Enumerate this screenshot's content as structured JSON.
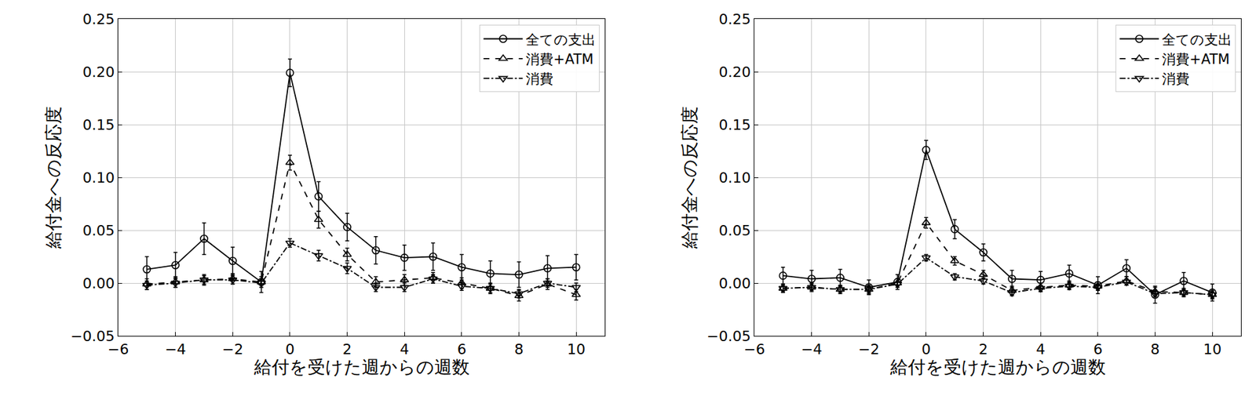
{
  "chart_data": [
    {
      "type": "line",
      "xlabel": "給付を受けた週からの週数",
      "ylabel": "給付金への反応度",
      "x": [
        -5,
        -4,
        -3,
        -2,
        -1,
        0,
        1,
        2,
        3,
        4,
        5,
        6,
        7,
        8,
        9,
        10
      ],
      "xlim": [
        -6,
        11
      ],
      "xticks": [
        {
          "value": -6,
          "label": "−6"
        },
        {
          "value": -4,
          "label": "−4"
        },
        {
          "value": -2,
          "label": "−2"
        },
        0,
        2,
        4,
        6,
        8,
        10
      ],
      "ylim": [
        -0.05,
        0.25
      ],
      "yticks": [
        {
          "value": -0.05,
          "label": "−0.05"
        },
        {
          "value": 0,
          "label": "0.00"
        },
        0.05,
        {
          "value": 0.1,
          "label": "0.10"
        },
        0.15,
        {
          "value": 0.2,
          "label": "0.20"
        },
        0.25
      ],
      "grid": true,
      "legend": "upper right",
      "series": [
        {
          "name": "全ての支出",
          "color": "#000000",
          "marker": "circle",
          "line_style": "solid",
          "values": [
            0.013,
            0.017,
            0.042,
            0.021,
            0.001,
            0.199,
            0.082,
            0.053,
            0.031,
            0.024,
            0.025,
            0.015,
            0.009,
            0.008,
            0.014,
            0.015
          ],
          "errors": [
            0.012,
            0.012,
            0.015,
            0.013,
            0.01,
            0.013,
            0.014,
            0.013,
            0.013,
            0.012,
            0.013,
            0.012,
            0.012,
            0.012,
            0.012,
            0.012
          ]
        },
        {
          "name": "消費+ATM",
          "color": "#000000",
          "marker": "triangle-up",
          "line_style": "dashed",
          "values": [
            -0.001,
            0.001,
            0.003,
            0.004,
            0.001,
            0.114,
            0.06,
            0.027,
            0.001,
            0.003,
            0.005,
            0.0,
            -0.005,
            -0.012,
            -0.001,
            -0.011
          ],
          "errors": [
            0.005,
            0.005,
            0.005,
            0.005,
            0.005,
            0.007,
            0.008,
            0.006,
            0.005,
            0.005,
            0.005,
            0.005,
            0.005,
            0.005,
            0.005,
            0.005
          ]
        },
        {
          "name": "消費",
          "color": "#000000",
          "marker": "triangle-down",
          "line_style": "dashdot",
          "values": [
            -0.002,
            0.0,
            0.003,
            0.003,
            0.0,
            0.038,
            0.026,
            0.014,
            -0.004,
            -0.004,
            0.004,
            -0.003,
            -0.005,
            -0.01,
            0.0,
            -0.004
          ],
          "errors": [
            0.004,
            0.004,
            0.004,
            0.004,
            0.004,
            0.004,
            0.005,
            0.005,
            0.004,
            0.004,
            0.004,
            0.004,
            0.004,
            0.004,
            0.004,
            0.004
          ]
        }
      ]
    },
    {
      "type": "line",
      "xlabel": "給付を受けた週からの週数",
      "ylabel": "給付金への反応度",
      "x": [
        -5,
        -4,
        -3,
        -2,
        -1,
        0,
        1,
        2,
        3,
        4,
        5,
        6,
        7,
        8,
        9,
        10
      ],
      "xlim": [
        -6,
        11
      ],
      "xticks": [
        {
          "value": -6,
          "label": "−6"
        },
        {
          "value": -4,
          "label": "−4"
        },
        {
          "value": -2,
          "label": "−2"
        },
        0,
        2,
        4,
        6,
        8,
        10
      ],
      "ylim": [
        -0.05,
        0.25
      ],
      "yticks": [
        {
          "value": -0.05,
          "label": "−0.05"
        },
        {
          "value": 0,
          "label": "0.00"
        },
        0.05,
        {
          "value": 0.1,
          "label": "0.10"
        },
        0.15,
        {
          "value": 0.2,
          "label": "0.20"
        },
        0.25
      ],
      "grid": true,
      "legend": "upper right",
      "series": [
        {
          "name": "全ての支出",
          "color": "#000000",
          "marker": "circle",
          "line_style": "solid",
          "values": [
            0.007,
            0.004,
            0.005,
            -0.004,
            0.001,
            0.126,
            0.051,
            0.029,
            0.004,
            0.003,
            0.009,
            -0.002,
            0.014,
            -0.011,
            0.002,
            -0.009
          ],
          "errors": [
            0.008,
            0.008,
            0.008,
            0.007,
            0.007,
            0.009,
            0.009,
            0.008,
            0.008,
            0.008,
            0.008,
            0.008,
            0.008,
            0.008,
            0.008,
            0.008
          ]
        },
        {
          "name": "消費+ATM",
          "color": "#000000",
          "marker": "triangle-up",
          "line_style": "dashed",
          "values": [
            -0.005,
            -0.004,
            -0.006,
            -0.006,
            0.0,
            0.057,
            0.021,
            0.008,
            -0.007,
            -0.004,
            -0.002,
            -0.003,
            0.002,
            -0.008,
            -0.009,
            -0.011
          ],
          "errors": [
            0.004,
            0.004,
            0.004,
            0.004,
            0.004,
            0.005,
            0.004,
            0.004,
            0.004,
            0.004,
            0.004,
            0.004,
            0.004,
            0.004,
            0.004,
            0.004
          ]
        },
        {
          "name": "消費",
          "color": "#000000",
          "marker": "triangle-down",
          "line_style": "dashdot",
          "values": [
            -0.005,
            -0.004,
            -0.006,
            -0.006,
            -0.001,
            0.024,
            0.006,
            0.002,
            -0.009,
            -0.005,
            -0.003,
            -0.004,
            0.001,
            -0.01,
            -0.009,
            -0.011
          ],
          "errors": [
            0.003,
            0.003,
            0.003,
            0.003,
            0.003,
            0.003,
            0.003,
            0.003,
            0.003,
            0.003,
            0.003,
            0.003,
            0.003,
            0.003,
            0.003,
            0.003
          ]
        }
      ]
    }
  ]
}
